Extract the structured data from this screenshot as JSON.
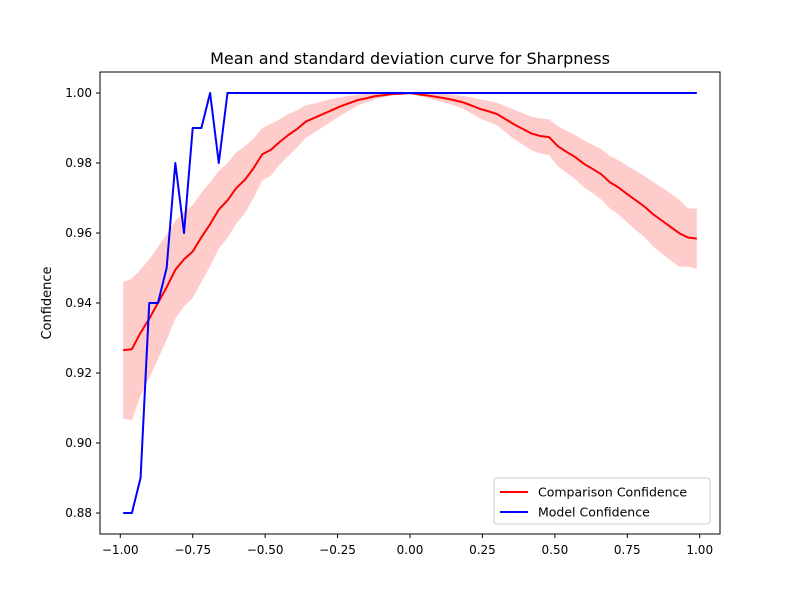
{
  "chart_data": {
    "type": "line",
    "title": "Mean and standard deviation curve for Sharpness",
    "xlabel": "",
    "ylabel": "Confidence",
    "xlim": [
      -1.07,
      1.07
    ],
    "ylim": [
      0.874,
      1.006
    ],
    "xticks": [
      {
        "value": -1.0,
        "label": "−1.00"
      },
      {
        "value": -0.75,
        "label": "−0.75"
      },
      {
        "value": -0.5,
        "label": "−0.50"
      },
      {
        "value": -0.25,
        "label": "−0.25"
      },
      {
        "value": 0.0,
        "label": "0.00"
      },
      {
        "value": 0.25,
        "label": "0.25"
      },
      {
        "value": 0.5,
        "label": "0.50"
      },
      {
        "value": 0.75,
        "label": "0.75"
      },
      {
        "value": 1.0,
        "label": "1.00"
      }
    ],
    "yticks": [
      {
        "value": 0.88,
        "label": "0.88"
      },
      {
        "value": 0.9,
        "label": "0.90"
      },
      {
        "value": 0.92,
        "label": "0.92"
      },
      {
        "value": 0.94,
        "label": "0.94"
      },
      {
        "value": 0.96,
        "label": "0.96"
      },
      {
        "value": 0.98,
        "label": "0.98"
      },
      {
        "value": 1.0,
        "label": "1.00"
      }
    ],
    "grid": false,
    "legend_position": "lower right",
    "series": [
      {
        "name": "Comparison Confidence",
        "color": "#ff0000",
        "band_color": "#ff9999",
        "x": [
          -0.99,
          -0.96,
          -0.93,
          -0.9,
          -0.87,
          -0.84,
          -0.81,
          -0.78,
          -0.75,
          -0.72,
          -0.69,
          -0.66,
          -0.63,
          -0.6,
          -0.57,
          -0.54,
          -0.51,
          -0.48,
          -0.45,
          -0.42,
          -0.39,
          -0.36,
          -0.33,
          -0.3,
          -0.27,
          -0.24,
          -0.21,
          -0.18,
          -0.15,
          -0.12,
          -0.09,
          -0.06,
          -0.03,
          0.0,
          0.03,
          0.06,
          0.09,
          0.12,
          0.15,
          0.18,
          0.21,
          0.24,
          0.27,
          0.3,
          0.33,
          0.36,
          0.39,
          0.42,
          0.45,
          0.48,
          0.51,
          0.54,
          0.57,
          0.6,
          0.63,
          0.66,
          0.69,
          0.72,
          0.75,
          0.78,
          0.81,
          0.84,
          0.87,
          0.9,
          0.93,
          0.96,
          0.99
        ],
        "mean": [
          0.9265,
          0.9268,
          0.9315,
          0.9355,
          0.94,
          0.9445,
          0.9495,
          0.9525,
          0.9547,
          0.9588,
          0.9625,
          0.9667,
          0.9693,
          0.9728,
          0.9752,
          0.9785,
          0.9825,
          0.9838,
          0.986,
          0.988,
          0.9897,
          0.9918,
          0.9929,
          0.994,
          0.9951,
          0.9962,
          0.9971,
          0.998,
          0.9985,
          0.9991,
          0.9994,
          0.9997,
          0.9998,
          1.0,
          0.9996,
          0.9993,
          0.9989,
          0.9985,
          0.998,
          0.9974,
          0.9965,
          0.9955,
          0.9948,
          0.994,
          0.9925,
          0.991,
          0.9897,
          0.9884,
          0.9877,
          0.9874,
          0.9848,
          0.9832,
          0.9817,
          0.9798,
          0.9783,
          0.9768,
          0.9745,
          0.973,
          0.9711,
          0.9693,
          0.9675,
          0.9653,
          0.9635,
          0.9617,
          0.9599,
          0.9587,
          0.9584
        ],
        "upper": [
          0.946,
          0.947,
          0.9495,
          0.9525,
          0.956,
          0.9595,
          0.9635,
          0.966,
          0.968,
          0.9715,
          0.9745,
          0.9778,
          0.98,
          0.983,
          0.9848,
          0.987,
          0.99,
          0.9912,
          0.9925,
          0.994,
          0.995,
          0.9965,
          0.997,
          0.9977,
          0.9983,
          0.9988,
          0.9992,
          0.9995,
          0.9997,
          0.9999,
          1.0,
          1.0,
          1.0,
          1.0,
          1.0,
          1.0,
          0.9999,
          0.9997,
          0.9995,
          0.9992,
          0.9988,
          0.9982,
          0.9978,
          0.9972,
          0.9962,
          0.9952,
          0.9942,
          0.9932,
          0.9927,
          0.9925,
          0.9905,
          0.9892,
          0.988,
          0.9865,
          0.9852,
          0.984,
          0.982,
          0.9808,
          0.9792,
          0.9778,
          0.9762,
          0.9745,
          0.973,
          0.9712,
          0.9695,
          0.967,
          0.967
        ],
        "lower": [
          0.907,
          0.9065,
          0.9135,
          0.9185,
          0.924,
          0.9295,
          0.9355,
          0.939,
          0.9415,
          0.946,
          0.9505,
          0.9556,
          0.9586,
          0.9626,
          0.9656,
          0.97,
          0.975,
          0.9764,
          0.9795,
          0.982,
          0.9844,
          0.9871,
          0.9888,
          0.9903,
          0.9919,
          0.9936,
          0.995,
          0.9965,
          0.9973,
          0.9983,
          0.9988,
          0.9994,
          0.9996,
          1.0,
          0.9992,
          0.9986,
          0.9979,
          0.9973,
          0.9965,
          0.9956,
          0.9942,
          0.9928,
          0.9918,
          0.9908,
          0.9888,
          0.9868,
          0.9852,
          0.9836,
          0.9827,
          0.9823,
          0.9791,
          0.9772,
          0.9754,
          0.9731,
          0.9714,
          0.9696,
          0.967,
          0.9652,
          0.963,
          0.9608,
          0.9588,
          0.9561,
          0.954,
          0.9522,
          0.9503,
          0.9504,
          0.9498
        ]
      },
      {
        "name": "Model Confidence",
        "color": "#0000ff",
        "x": [
          -0.99,
          -0.96,
          -0.93,
          -0.9,
          -0.87,
          -0.84,
          -0.81,
          -0.78,
          -0.75,
          -0.72,
          -0.69,
          -0.66,
          -0.63,
          -0.6,
          -0.57,
          -0.54,
          -0.51,
          -0.48,
          -0.45,
          -0.42,
          -0.39,
          -0.36,
          -0.33,
          -0.3,
          -0.27,
          -0.24,
          -0.21,
          -0.18,
          -0.15,
          -0.12,
          -0.09,
          -0.06,
          -0.03,
          0.0,
          0.03,
          0.06,
          0.09,
          0.12,
          0.15,
          0.18,
          0.21,
          0.24,
          0.27,
          0.3,
          0.33,
          0.36,
          0.39,
          0.42,
          0.45,
          0.48,
          0.51,
          0.54,
          0.57,
          0.6,
          0.63,
          0.66,
          0.69,
          0.72,
          0.75,
          0.78,
          0.81,
          0.84,
          0.87,
          0.9,
          0.93,
          0.96,
          0.99
        ],
        "values": [
          0.88,
          0.88,
          0.89,
          0.94,
          0.94,
          0.95,
          0.98,
          0.96,
          0.99,
          0.99,
          1.0,
          0.98,
          1.0,
          1.0,
          1.0,
          1.0,
          1.0,
          1.0,
          1.0,
          1.0,
          1.0,
          1.0,
          1.0,
          1.0,
          1.0,
          1.0,
          1.0,
          1.0,
          1.0,
          1.0,
          1.0,
          1.0,
          1.0,
          1.0,
          1.0,
          1.0,
          1.0,
          1.0,
          1.0,
          1.0,
          1.0,
          1.0,
          1.0,
          1.0,
          1.0,
          1.0,
          1.0,
          1.0,
          1.0,
          1.0,
          1.0,
          1.0,
          1.0,
          1.0,
          1.0,
          1.0,
          1.0,
          1.0,
          1.0,
          1.0,
          1.0,
          1.0,
          1.0,
          1.0,
          1.0,
          1.0,
          1.0
        ]
      }
    ]
  }
}
